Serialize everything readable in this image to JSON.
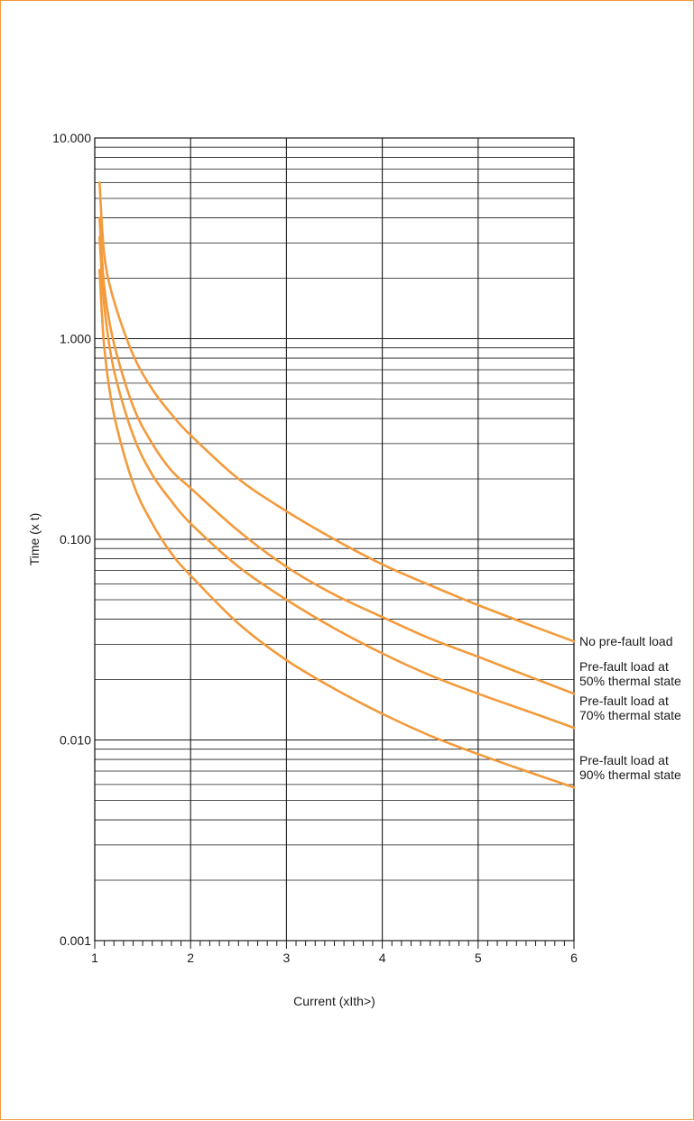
{
  "chart_data": {
    "type": "line",
    "title": "",
    "xlabel": "Current (xIth>)",
    "ylabel": "Time (x t)",
    "xlim": [
      1,
      6
    ],
    "ylim": [
      0.001,
      10
    ],
    "yscale": "log",
    "grid": true,
    "x_ticks": [
      1,
      2,
      3,
      4,
      5,
      6
    ],
    "x_tick_labels": [
      "1",
      "2",
      "3",
      "4",
      "5",
      "6"
    ],
    "y_ticks": [
      0.001,
      0.01,
      0.1,
      1,
      10
    ],
    "y_tick_labels": [
      "0.001",
      "0.010",
      "0.100",
      "1.000",
      "10.000"
    ],
    "line_color": "#f39a3b",
    "series": [
      {
        "name": "No pre-fault load",
        "x": [
          1.05,
          1.1,
          1.2,
          1.4,
          1.6,
          1.8,
          2.0,
          2.5,
          3.0,
          3.5,
          4.0,
          4.5,
          5.0,
          5.5,
          6.0
        ],
        "y": [
          6.0,
          2.6,
          1.55,
          0.83,
          0.56,
          0.42,
          0.33,
          0.2,
          0.138,
          0.1,
          0.075,
          0.059,
          0.047,
          0.038,
          0.031
        ]
      },
      {
        "name": "Pre-fault load at 50% thermal state",
        "x": [
          1.05,
          1.1,
          1.2,
          1.4,
          1.6,
          1.8,
          2.0,
          2.5,
          3.0,
          3.5,
          4.0,
          4.5,
          5.0,
          5.5,
          6.0
        ],
        "y": [
          4.0,
          1.8,
          0.95,
          0.46,
          0.3,
          0.22,
          0.18,
          0.11,
          0.073,
          0.053,
          0.041,
          0.032,
          0.026,
          0.021,
          0.017
        ]
      },
      {
        "name": "Pre-fault load at 70% thermal state",
        "x": [
          1.05,
          1.1,
          1.2,
          1.4,
          1.6,
          1.8,
          2.0,
          2.5,
          3.0,
          3.5,
          4.0,
          4.5,
          5.0,
          5.5,
          6.0
        ],
        "y": [
          3.2,
          1.45,
          0.7,
          0.33,
          0.21,
          0.155,
          0.12,
          0.073,
          0.05,
          0.036,
          0.027,
          0.021,
          0.017,
          0.014,
          0.0115
        ]
      },
      {
        "name": "Pre-fault load at 90% thermal state",
        "x": [
          1.05,
          1.1,
          1.2,
          1.4,
          1.6,
          1.8,
          2.0,
          2.5,
          3.0,
          3.5,
          4.0,
          4.5,
          5.0,
          5.5,
          6.0
        ],
        "y": [
          2.2,
          0.9,
          0.42,
          0.19,
          0.12,
          0.085,
          0.066,
          0.038,
          0.025,
          0.018,
          0.0135,
          0.0105,
          0.0085,
          0.007,
          0.0058
        ]
      }
    ],
    "annotations": [
      {
        "series": 0,
        "lines": [
          "No pre-fault load"
        ]
      },
      {
        "series": 1,
        "lines": [
          "Pre-fault load at",
          "50% thermal state"
        ]
      },
      {
        "series": 2,
        "lines": [
          "Pre-fault load at",
          "70% thermal state"
        ]
      },
      {
        "series": 3,
        "lines": [
          "Pre-fault load at",
          "90% thermal state"
        ]
      }
    ]
  }
}
